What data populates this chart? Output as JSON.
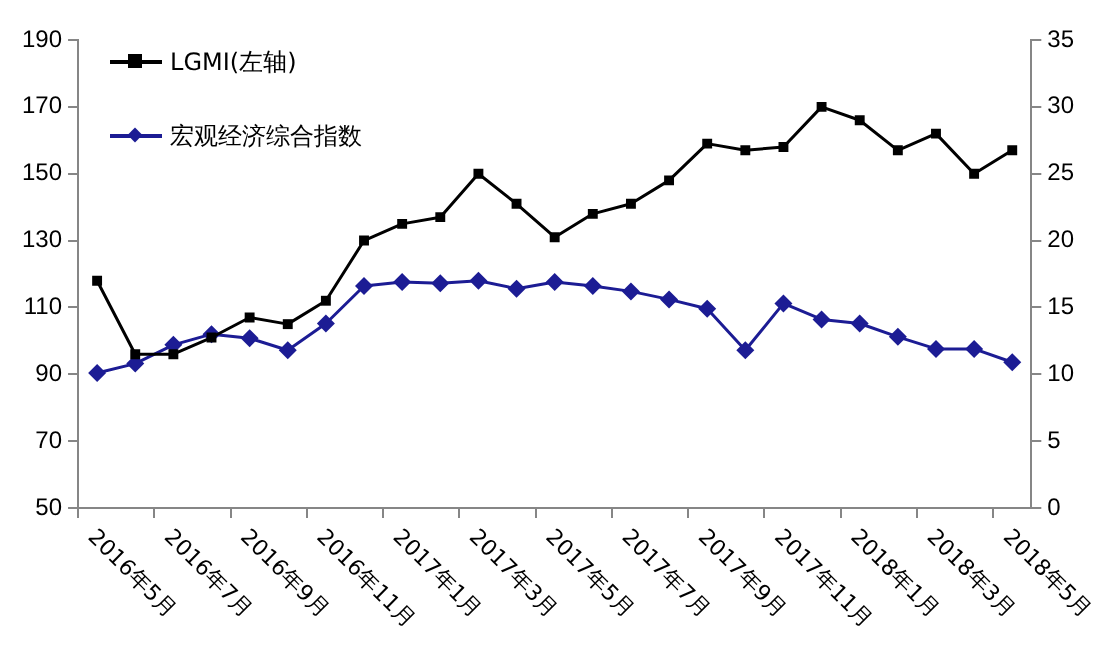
{
  "chart_data": {
    "type": "line",
    "categories": [
      "2016年5月",
      null,
      "2016年7月",
      null,
      "2016年9月",
      null,
      "2016年11月",
      null,
      "2017年1月",
      null,
      "2017年3月",
      null,
      "2017年5月",
      null,
      "2017年7月",
      null,
      "2017年9月",
      null,
      "2017年11月",
      null,
      "2018年1月",
      null,
      "2018年3月",
      null,
      "2018年5月"
    ],
    "series": [
      {
        "name": "LGMI(左轴)",
        "color": "#000000",
        "marker": "square",
        "axis": "y",
        "values": [
          118,
          96,
          96,
          101,
          107,
          105,
          112,
          130,
          135,
          137,
          150,
          141,
          131,
          138,
          141,
          148,
          159,
          157,
          158,
          170,
          166,
          157,
          162,
          150,
          157
        ]
      },
      {
        "name": "宏观经济综合指数",
        "color": "#1c1c94",
        "marker": "diamond",
        "axis": "y2",
        "values": [
          10.1,
          10.8,
          12.2,
          13.0,
          12.7,
          11.8,
          13.8,
          16.6,
          16.9,
          16.8,
          17.0,
          16.4,
          16.9,
          16.6,
          16.2,
          15.6,
          14.9,
          11.8,
          15.3,
          14.1,
          13.8,
          12.8,
          11.9,
          11.9,
          10.9
        ]
      }
    ],
    "ylim": [
      50,
      190
    ],
    "yticks": [
      50,
      70,
      90,
      110,
      130,
      150,
      170,
      190
    ],
    "y2lim": [
      0,
      35
    ],
    "y2ticks": [
      0,
      5,
      10,
      15,
      20,
      25,
      30,
      35
    ],
    "grid": false,
    "legend": "top left"
  }
}
